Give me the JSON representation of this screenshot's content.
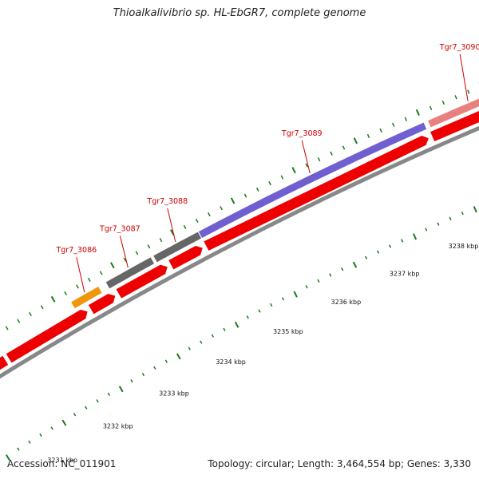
{
  "title": "Thioalkalivibrio sp. HL-EbGR7, complete genome",
  "footer": {
    "accession": "Accession: NC_011901",
    "topology": "Topology: circular; Length: 3,464,554 bp; Genes: 3,330"
  },
  "colors": {
    "cds": "#ee0000",
    "backbone": "#888888",
    "tick": "#1a7a1a",
    "label": "#cc0000"
  },
  "features": [
    {
      "label": "",
      "color": "#ee0000"
    },
    {
      "label": "",
      "color": "#ee0000"
    },
    {
      "label": "",
      "color": "#ee0000"
    },
    {
      "label": "Tgr7_3086",
      "color": "#f0960a"
    },
    {
      "label": "Tgr7_3087",
      "color": "#666666"
    },
    {
      "label": "Tgr7_3088",
      "color": "#666666"
    },
    {
      "label": "Tgr7_3089",
      "color": "#6f5fd0"
    },
    {
      "label": "Tgr7_3090",
      "color": "#e88080"
    }
  ],
  "cds_track": [
    {
      "strand": "reverse"
    },
    {
      "strand": "forward"
    },
    {
      "strand": "forward"
    },
    {
      "strand": "forward"
    },
    {
      "strand": "forward"
    },
    {
      "strand": "forward"
    },
    {
      "strand": "forward"
    }
  ],
  "scale_labels": [
    "3231 kbp",
    "3232 kbp",
    "3233 kbp",
    "3234 kbp",
    "3235 kbp",
    "3236 kbp",
    "3237 kbp",
    "3238 kbp"
  ]
}
